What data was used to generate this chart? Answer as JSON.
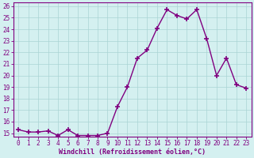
{
  "x": [
    0,
    1,
    2,
    3,
    4,
    5,
    6,
    7,
    8,
    9,
    10,
    11,
    12,
    13,
    14,
    15,
    16,
    17,
    18,
    19,
    20,
    21,
    22,
    23
  ],
  "y": [
    15.3,
    15.1,
    15.1,
    15.2,
    14.8,
    15.3,
    14.8,
    14.8,
    14.8,
    15.0,
    17.3,
    19.0,
    21.5,
    22.2,
    24.1,
    25.7,
    25.2,
    24.9,
    25.7,
    23.2,
    20.0,
    21.5,
    19.2,
    18.9
  ],
  "line_color": "#800080",
  "marker": "+",
  "marker_size": 4,
  "bg_color": "#d4f0f0",
  "grid_color": "#aad4d4",
  "xlabel": "Windchill (Refroidissement éolien,°C)",
  "ylim_min": 15,
  "ylim_max": 26,
  "xlim_min": 0,
  "xlim_max": 23,
  "yticks": [
    15,
    16,
    17,
    18,
    19,
    20,
    21,
    22,
    23,
    24,
    25,
    26
  ],
  "xticks": [
    0,
    1,
    2,
    3,
    4,
    5,
    6,
    7,
    8,
    9,
    10,
    11,
    12,
    13,
    14,
    15,
    16,
    17,
    18,
    19,
    20,
    21,
    22,
    23
  ],
  "xtick_labels": [
    "0",
    "1",
    "2",
    "3",
    "4",
    "5",
    "6",
    "7",
    "8",
    "9",
    "10",
    "11",
    "12",
    "13",
    "14",
    "15",
    "16",
    "17",
    "18",
    "19",
    "20",
    "21",
    "22",
    "23"
  ],
  "ytick_labels": [
    "15",
    "16",
    "17",
    "18",
    "19",
    "20",
    "21",
    "22",
    "23",
    "24",
    "25",
    "26"
  ],
  "tick_color": "#800080",
  "label_color": "#800080",
  "spine_color": "#800080",
  "linewidth": 1.0,
  "xlabel_fontsize": 6.0,
  "tick_fontsize": 5.5
}
